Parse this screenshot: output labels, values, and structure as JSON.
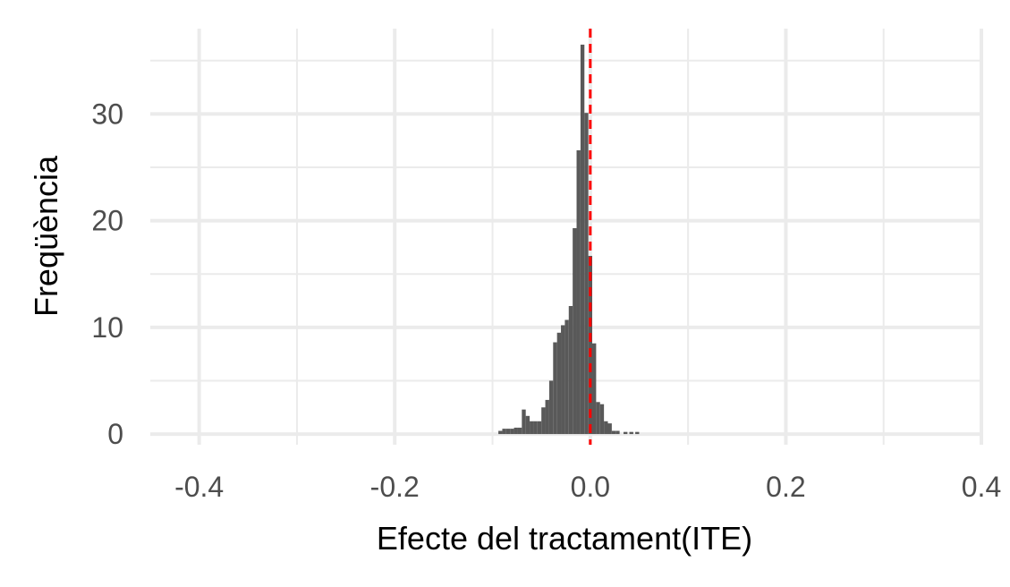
{
  "chart_data": {
    "type": "bar",
    "title": "",
    "xlabel": "Efecte del tractament(ITE)",
    "ylabel": "Freqüència",
    "xlim": [
      -0.45,
      0.4
    ],
    "ylim": [
      -1,
      38
    ],
    "x_ticks": [
      -0.4,
      -0.2,
      0.0,
      0.2,
      0.4
    ],
    "x_tick_labels": [
      "-0.4",
      "-0.2",
      "0.0",
      "0.2",
      "0.4"
    ],
    "y_ticks": [
      0,
      10,
      20,
      30
    ],
    "y_tick_labels": [
      "0",
      "10",
      "20",
      "30"
    ],
    "grid": true,
    "bin_width": 0.004,
    "bins": [
      {
        "x0": -0.094,
        "x1": -0.09,
        "count": 0.3
      },
      {
        "x0": -0.09,
        "x1": -0.086,
        "count": 0.5
      },
      {
        "x0": -0.086,
        "x1": -0.082,
        "count": 0.5
      },
      {
        "x0": -0.082,
        "x1": -0.078,
        "count": 0.5
      },
      {
        "x0": -0.078,
        "x1": -0.074,
        "count": 0.6
      },
      {
        "x0": -0.074,
        "x1": -0.07,
        "count": 0.6
      },
      {
        "x0": -0.07,
        "x1": -0.066,
        "count": 2.3
      },
      {
        "x0": -0.066,
        "x1": -0.062,
        "count": 1.7
      },
      {
        "x0": -0.062,
        "x1": -0.058,
        "count": 1.2
      },
      {
        "x0": -0.058,
        "x1": -0.054,
        "count": 1.2
      },
      {
        "x0": -0.054,
        "x1": -0.05,
        "count": 1.2
      },
      {
        "x0": -0.05,
        "x1": -0.046,
        "count": 2.5
      },
      {
        "x0": -0.046,
        "x1": -0.042,
        "count": 3.2
      },
      {
        "x0": -0.042,
        "x1": -0.038,
        "count": 5.0
      },
      {
        "x0": -0.038,
        "x1": -0.034,
        "count": 8.6
      },
      {
        "x0": -0.034,
        "x1": -0.03,
        "count": 9.5
      },
      {
        "x0": -0.03,
        "x1": -0.026,
        "count": 10.2
      },
      {
        "x0": -0.026,
        "x1": -0.022,
        "count": 10.7
      },
      {
        "x0": -0.022,
        "x1": -0.018,
        "count": 12.0
      },
      {
        "x0": -0.018,
        "x1": -0.014,
        "count": 19.3
      },
      {
        "x0": -0.014,
        "x1": -0.01,
        "count": 26.6
      },
      {
        "x0": -0.01,
        "x1": -0.006,
        "count": 36.5
      },
      {
        "x0": -0.006,
        "x1": -0.002,
        "count": 30.1
      },
      {
        "x0": -0.002,
        "x1": 0.002,
        "count": 16.7
      },
      {
        "x0": 0.002,
        "x1": 0.006,
        "count": 8.5
      },
      {
        "x0": 0.006,
        "x1": 0.01,
        "count": 3.0
      },
      {
        "x0": 0.01,
        "x1": 0.014,
        "count": 2.8
      },
      {
        "x0": 0.014,
        "x1": 0.018,
        "count": 1.2
      },
      {
        "x0": 0.018,
        "x1": 0.022,
        "count": 1.0
      },
      {
        "x0": 0.022,
        "x1": 0.026,
        "count": 0.3
      },
      {
        "x0": 0.026,
        "x1": 0.03,
        "count": 0.3
      },
      {
        "x0": 0.034,
        "x1": 0.038,
        "count": 0.2
      },
      {
        "x0": 0.04,
        "x1": 0.044,
        "count": 0.2
      },
      {
        "x0": 0.046,
        "x1": 0.05,
        "count": 0.2
      }
    ],
    "reference_line": {
      "x": 0.0,
      "color": "#ff0000",
      "style": "dashed"
    },
    "bar_color": "#595959",
    "grid_color": "#ebebeb"
  }
}
